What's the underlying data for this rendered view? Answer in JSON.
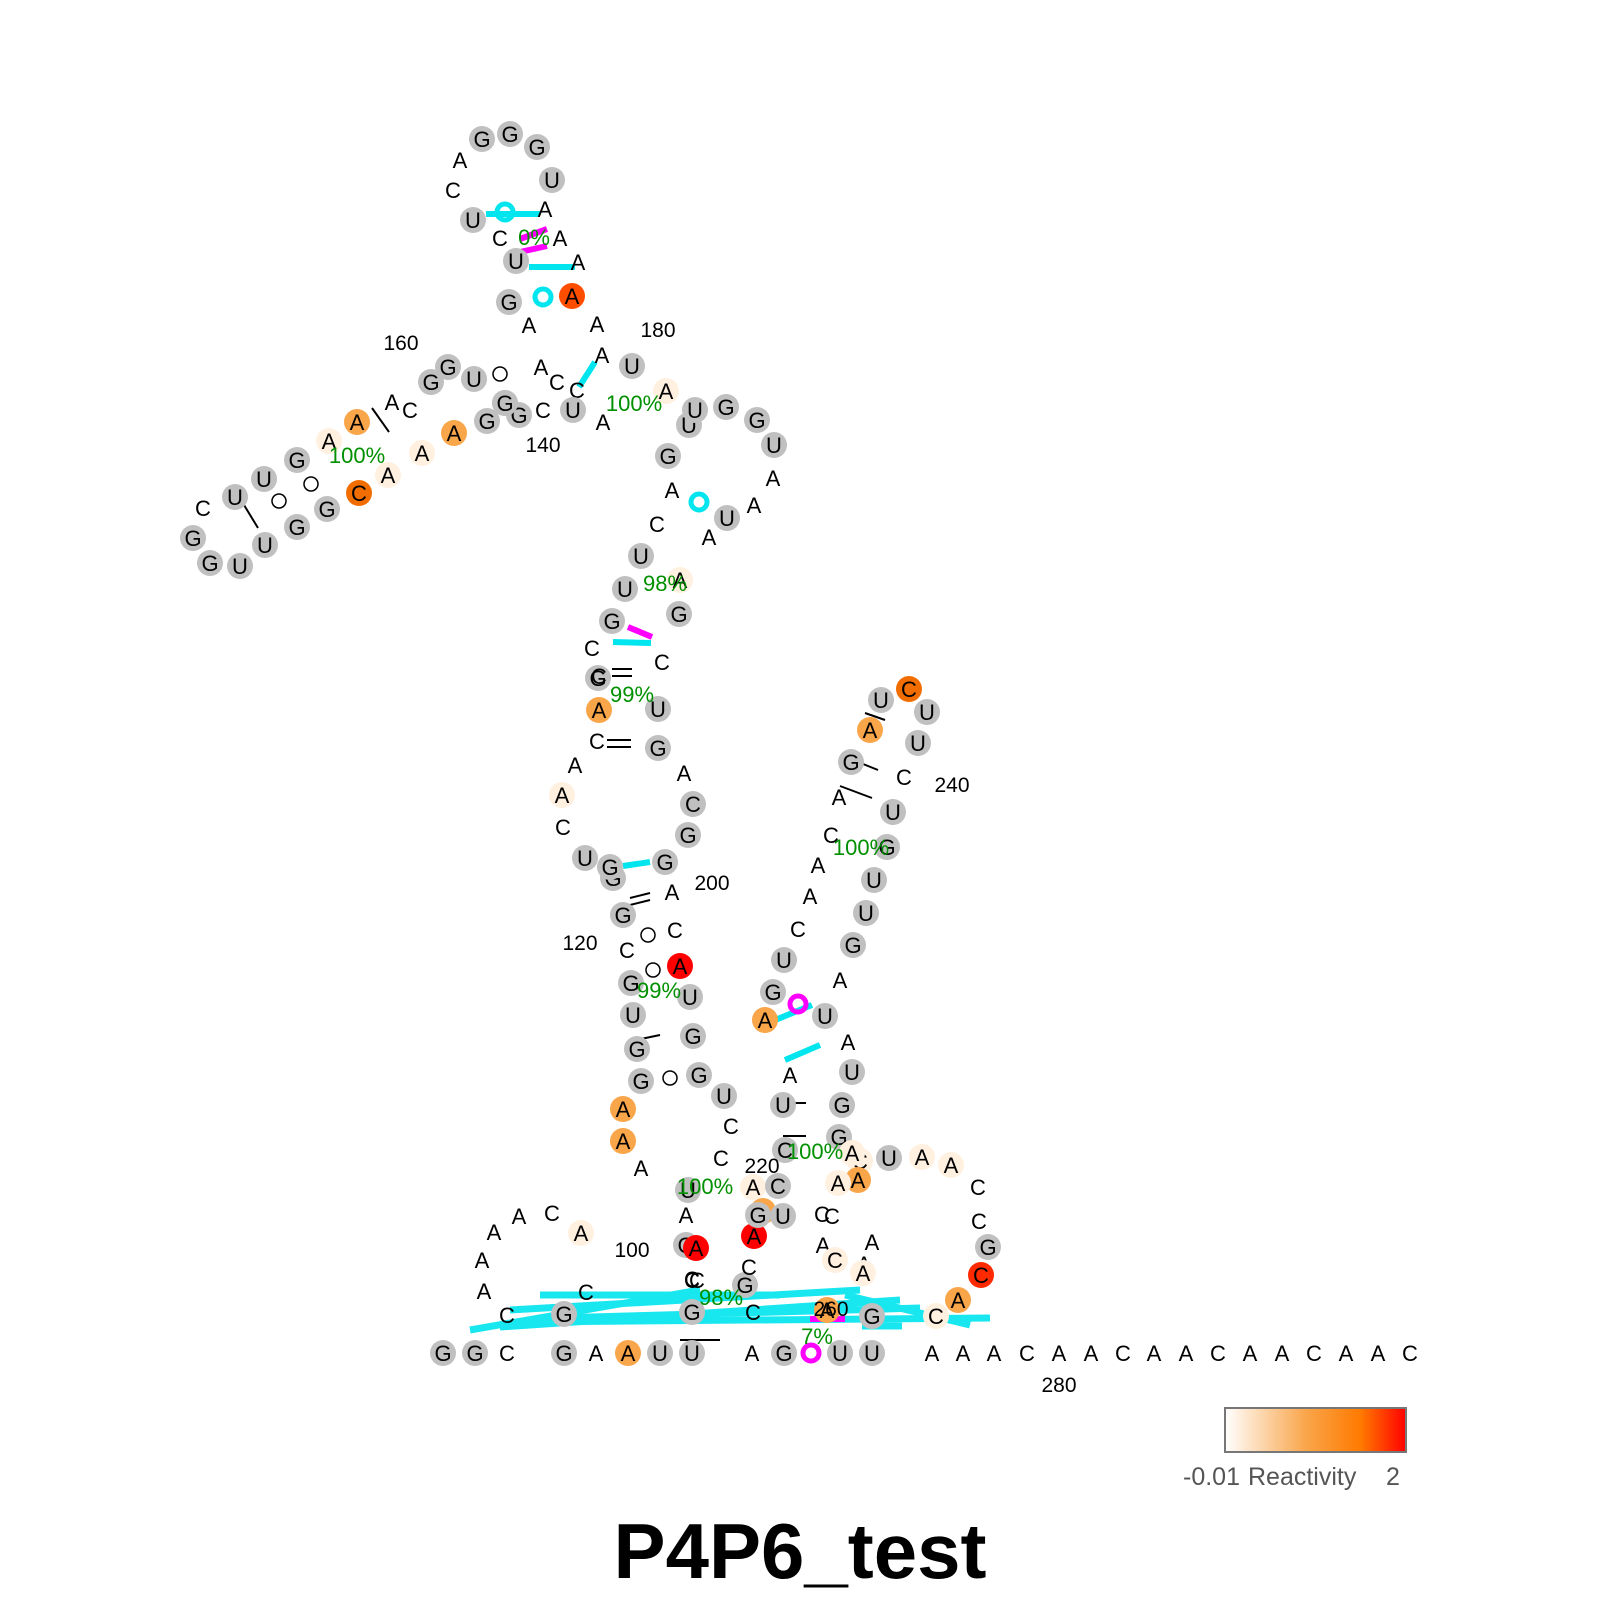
{
  "title": "P4P6_test",
  "colors": {
    "base_gray": "#c0c0c0",
    "crossing_pair_cyan": "#00e5ee",
    "alt_pair_magenta": "#ff00ff",
    "confidence_green": "#009000",
    "reactivity_low": "#ffffff",
    "reactivity_mid": "#f9a54a",
    "reactivity_high": "#ff0000"
  },
  "legend": {
    "label": "Reactivity",
    "min_label": "-0.01",
    "max_label": "2",
    "scale": [
      "#ffffff",
      "#f9a54a",
      "#ff7a00",
      "#ff0000"
    ]
  },
  "position_labels": [
    "100",
    "120",
    "140",
    "160",
    "180",
    "200",
    "220",
    "240",
    "260",
    "280"
  ],
  "helix_confidences": [
    "0%",
    "100%",
    "100%",
    "98%",
    "99%",
    "99%",
    "100%",
    "100%",
    "100%",
    "98%",
    "7%"
  ],
  "nucleotides": [
    {
      "ch": "G",
      "c": "#c0c0c0"
    },
    {
      "ch": "G",
      "c": "#c0c0c0"
    },
    {
      "ch": "C"
    },
    {
      "ch": "G",
      "c": "#c0c0c0"
    },
    {
      "ch": "A"
    },
    {
      "ch": "A",
      "c": "#f9a54a"
    },
    {
      "ch": "U",
      "c": "#c0c0c0"
    },
    {
      "ch": "U",
      "c": "#c0c0c0"
    },
    {
      "ch": "A"
    },
    {
      "ch": "G",
      "c": "#c0c0c0"
    },
    {
      "ch": "U",
      "c": "#c0c0c0"
    },
    {
      "ch": "U",
      "c": "#c0c0c0"
    },
    {
      "ch": "A"
    },
    {
      "ch": "A"
    },
    {
      "ch": "A"
    },
    {
      "ch": "C"
    },
    {
      "ch": "A"
    },
    {
      "ch": "A"
    },
    {
      "ch": "C"
    },
    {
      "ch": "A"
    },
    {
      "ch": "A"
    },
    {
      "ch": "C"
    },
    {
      "ch": "A"
    },
    {
      "ch": "A"
    },
    {
      "ch": "C"
    },
    {
      "ch": "A"
    },
    {
      "ch": "A"
    },
    {
      "ch": "C"
    },
    {
      "ch": "C"
    },
    {
      "ch": "A"
    },
    {
      "ch": "A"
    },
    {
      "ch": "A"
    },
    {
      "ch": "A"
    },
    {
      "ch": "C"
    },
    {
      "ch": "A",
      "c": "#fff0e0"
    },
    {
      "ch": "G",
      "c": "#c0c0c0"
    },
    {
      "ch": "C"
    },
    {
      "ch": "C"
    },
    {
      "ch": "G",
      "c": "#c0c0c0"
    },
    {
      "ch": "G",
      "c": "#c0c0c0"
    },
    {
      "ch": "C"
    },
    {
      "ch": "A"
    },
    {
      "ch": "A",
      "c": "#f9a54a"
    },
    {
      "ch": "A",
      "c": "#f9a54a"
    },
    {
      "ch": "G",
      "c": "#c0c0c0"
    },
    {
      "ch": "G",
      "c": "#c0c0c0"
    },
    {
      "ch": "U",
      "c": "#c0c0c0"
    },
    {
      "ch": "G",
      "c": "#c0c0c0"
    },
    {
      "ch": "C"
    },
    {
      "ch": "G",
      "c": "#c0c0c0"
    },
    {
      "ch": "G",
      "c": "#c0c0c0"
    },
    {
      "ch": "G",
      "c": "#c0c0c0"
    },
    {
      "ch": "U",
      "c": "#c0c0c0"
    },
    {
      "ch": "C"
    },
    {
      "ch": "A",
      "c": "#fff0e0"
    },
    {
      "ch": "A"
    },
    {
      "ch": "C"
    },
    {
      "ch": "A",
      "c": "#f9a54a"
    },
    {
      "ch": "G",
      "c": "#c0c0c0"
    },
    {
      "ch": "C"
    },
    {
      "ch": "C"
    },
    {
      "ch": "G",
      "c": "#c0c0c0"
    },
    {
      "ch": "U",
      "c": "#c0c0c0"
    },
    {
      "ch": "U",
      "c": "#c0c0c0"
    },
    {
      "ch": "C"
    },
    {
      "ch": "A"
    },
    {
      "ch": "G",
      "c": "#c0c0c0"
    },
    {
      "ch": "U",
      "c": "#c0c0c0"
    },
    {
      "ch": "A"
    },
    {
      "ch": "C"
    },
    {
      "ch": "C"
    },
    {
      "ch": "A"
    },
    {
      "ch": "A"
    },
    {
      "ch": "G",
      "c": "#c0c0c0"
    },
    {
      "ch": "U",
      "c": "#c0c0c0"
    },
    {
      "ch": "C"
    },
    {
      "ch": "U",
      "c": "#c0c0c0"
    },
    {
      "ch": "C"
    },
    {
      "ch": "A"
    },
    {
      "ch": "G",
      "c": "#c0c0c0"
    },
    {
      "ch": "G",
      "c": "#c0c0c0"
    },
    {
      "ch": "G",
      "c": "#c0c0c0"
    },
    {
      "ch": "U",
      "c": "#c0c0c0"
    },
    {
      "ch": "A"
    },
    {
      "ch": "A"
    },
    {
      "ch": "A"
    },
    {
      "ch": "A",
      "c": "#ff4d00"
    },
    {
      "ch": "A"
    },
    {
      "ch": "A"
    },
    {
      "ch": "U",
      "c": "#c0c0c0"
    },
    {
      "ch": "C"
    },
    {
      "ch": "U",
      "c": "#c0c0c0"
    },
    {
      "ch": "U",
      "c": "#c0c0c0"
    },
    {
      "ch": "G",
      "c": "#c0c0c0"
    },
    {
      "ch": "G",
      "c": "#c0c0c0"
    },
    {
      "ch": "C"
    },
    {
      "ch": "A"
    },
    {
      "ch": "A",
      "c": "#f9a54a"
    },
    {
      "ch": "A",
      "c": "#fff0e0"
    },
    {
      "ch": "G",
      "c": "#c0c0c0"
    },
    {
      "ch": "U",
      "c": "#c0c0c0"
    },
    {
      "ch": "U",
      "c": "#c0c0c0"
    },
    {
      "ch": "C"
    },
    {
      "ch": "G",
      "c": "#c0c0c0"
    },
    {
      "ch": "G",
      "c": "#c0c0c0"
    },
    {
      "ch": "U",
      "c": "#c0c0c0"
    },
    {
      "ch": "U",
      "c": "#c0c0c0"
    },
    {
      "ch": "G",
      "c": "#c0c0c0"
    },
    {
      "ch": "G",
      "c": "#c0c0c0"
    },
    {
      "ch": "C",
      "c": "#f26d00"
    },
    {
      "ch": "A",
      "c": "#fff0e0"
    },
    {
      "ch": "A",
      "c": "#fff0e0"
    },
    {
      "ch": "A",
      "c": "#f9a54a"
    },
    {
      "ch": "G",
      "c": "#c0c0c0"
    },
    {
      "ch": "G",
      "c": "#c0c0c0"
    },
    {
      "ch": "G",
      "c": "#c0c0c0"
    },
    {
      "ch": "U",
      "c": "#c0c0c0"
    },
    {
      "ch": "A",
      "c": "#fff0e0"
    },
    {
      "ch": "U",
      "c": "#c0c0c0"
    },
    {
      "ch": "G",
      "c": "#c0c0c0"
    },
    {
      "ch": "G",
      "c": "#c0c0c0"
    },
    {
      "ch": "U",
      "c": "#c0c0c0"
    },
    {
      "ch": "A"
    },
    {
      "ch": "A"
    },
    {
      "ch": "U",
      "c": "#c0c0c0"
    },
    {
      "ch": "A"
    },
    {
      "ch": "A",
      "c": "#fff0e0"
    },
    {
      "ch": "G",
      "c": "#c0c0c0"
    },
    {
      "ch": "C"
    },
    {
      "ch": "U",
      "c": "#c0c0c0"
    },
    {
      "ch": "G",
      "c": "#c0c0c0"
    },
    {
      "ch": "A"
    },
    {
      "ch": "C",
      "c": "#c0c0c0"
    },
    {
      "ch": "G",
      "c": "#c0c0c0"
    },
    {
      "ch": "G",
      "c": "#c0c0c0"
    },
    {
      "ch": "A"
    },
    {
      "ch": "C"
    },
    {
      "ch": "A",
      "c": "#ff0000"
    },
    {
      "ch": "U",
      "c": "#c0c0c0"
    },
    {
      "ch": "G",
      "c": "#c0c0c0"
    },
    {
      "ch": "G",
      "c": "#c0c0c0"
    },
    {
      "ch": "U",
      "c": "#c0c0c0"
    },
    {
      "ch": "C"
    },
    {
      "ch": "C"
    },
    {
      "ch": "U",
      "c": "#c0c0c0"
    },
    {
      "ch": "A"
    },
    {
      "ch": "A",
      "c": "#ff0000"
    },
    {
      "ch": "C"
    },
    {
      "ch": "C"
    },
    {
      "ch": "G",
      "c": "#c0c0c0"
    },
    {
      "ch": "C"
    },
    {
      "ch": "A",
      "c": "#ff0000"
    },
    {
      "ch": "A",
      "c": "#f9a54a"
    },
    {
      "ch": "A",
      "c": "#fff0e0"
    },
    {
      "ch": "G",
      "c": "#c0c0c0"
    },
    {
      "ch": "U",
      "c": "#c0c0c0"
    },
    {
      "ch": "C",
      "c": "#c0c0c0"
    },
    {
      "ch": "C",
      "c": "#c0c0c0"
    },
    {
      "ch": "U",
      "c": "#c0c0c0"
    },
    {
      "ch": "A"
    },
    {
      "ch": "A",
      "c": "#f9a54a"
    },
    {
      "ch": "G",
      "c": "#c0c0c0"
    },
    {
      "ch": "U",
      "c": "#c0c0c0"
    },
    {
      "ch": "C"
    },
    {
      "ch": "A"
    },
    {
      "ch": "A"
    },
    {
      "ch": "C"
    },
    {
      "ch": "A"
    },
    {
      "ch": "G",
      "c": "#c0c0c0"
    },
    {
      "ch": "A",
      "c": "#f9a54a"
    },
    {
      "ch": "U",
      "c": "#c0c0c0"
    },
    {
      "ch": "C",
      "c": "#f26d00"
    },
    {
      "ch": "U",
      "c": "#c0c0c0"
    },
    {
      "ch": "U",
      "c": "#c0c0c0"
    },
    {
      "ch": "C"
    },
    {
      "ch": "U",
      "c": "#c0c0c0"
    },
    {
      "ch": "G",
      "c": "#c0c0c0"
    },
    {
      "ch": "U",
      "c": "#c0c0c0"
    },
    {
      "ch": "U",
      "c": "#c0c0c0"
    },
    {
      "ch": "G",
      "c": "#c0c0c0"
    },
    {
      "ch": "A"
    },
    {
      "ch": "U",
      "c": "#c0c0c0"
    },
    {
      "ch": "A"
    },
    {
      "ch": "U",
      "c": "#c0c0c0"
    },
    {
      "ch": "G",
      "c": "#c0c0c0"
    },
    {
      "ch": "G",
      "c": "#c0c0c0"
    },
    {
      "ch": "C",
      "c": "#fff0e0"
    },
    {
      "ch": "U",
      "c": "#c0c0c0"
    },
    {
      "ch": "A",
      "c": "#fff0e0"
    },
    {
      "ch": "A",
      "c": "#fff0e0"
    },
    {
      "ch": "C"
    },
    {
      "ch": "C"
    },
    {
      "ch": "G",
      "c": "#c0c0c0"
    },
    {
      "ch": "C",
      "c": "#ff2a00"
    },
    {
      "ch": "A",
      "c": "#f9a54a"
    },
    {
      "ch": "C",
      "c": "#fff0e0"
    },
    {
      "ch": "G",
      "c": "#c0c0c0"
    },
    {
      "ch": "A"
    },
    {
      "ch": "A"
    },
    {
      "ch": "C"
    },
    {
      "ch": "A"
    },
    {
      "ch": "C",
      "c": "#fff0e0"
    },
    {
      "ch": "A",
      "c": "#f9a54a"
    },
    {
      "ch": "A",
      "c": "#fff0e0"
    },
    {
      "ch": "A",
      "c": "#fff0e0"
    },
    {
      "ch": "C"
    },
    {
      "ch": "A",
      "c": "#fff0e0"
    },
    {
      "ch": "A",
      "c": "#f9a54a"
    }
  ]
}
